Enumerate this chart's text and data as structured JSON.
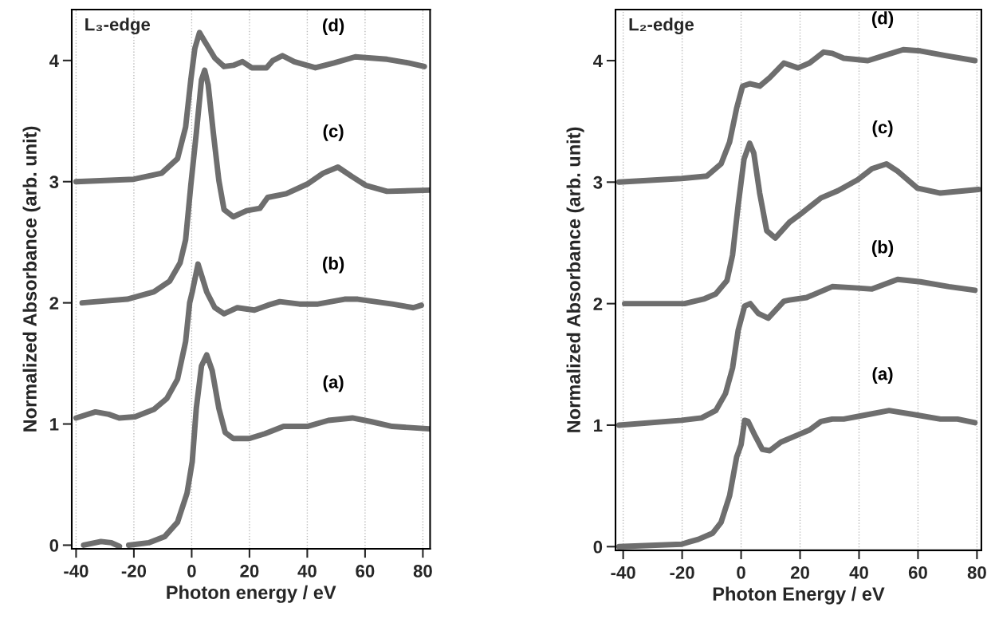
{
  "chart_data": [
    {
      "type": "line",
      "xlabel": "Photon energy / eV",
      "ylabel": "Normalized Absorbance (arb. unit)",
      "xlim": [
        -41.5,
        82.5
      ],
      "ylim": [
        -0.03,
        4.42
      ],
      "xticks": [
        -40,
        -20,
        0,
        20,
        40,
        60,
        80
      ],
      "yticks": [
        0,
        1,
        2,
        3,
        4
      ],
      "grid": "x",
      "annotations": [
        "L₃-edge"
      ],
      "series": [
        {
          "name": "(a)",
          "color": "#6e6e6e",
          "x": [
            -37.4,
            -31.4,
            -27.8,
            -25,
            -23.5,
            -21.8,
            -14.9,
            -9.4,
            -4.9,
            -1.6,
            0.2,
            1.6,
            3.4,
            5.2,
            7.1,
            9.4,
            11.6,
            14.4,
            19.9,
            25.3,
            31.8,
            40,
            47.3,
            55.6,
            62,
            69.4,
            82.3
          ],
          "values": [
            0.0,
            0.03,
            0.02,
            -0.01,
            null,
            0.0,
            0.02,
            0.07,
            0.19,
            0.43,
            0.69,
            1.13,
            1.48,
            1.57,
            1.44,
            1.13,
            0.93,
            0.88,
            0.88,
            0.92,
            0.98,
            0.98,
            1.03,
            1.05,
            1.02,
            0.98,
            0.96
          ]
        },
        {
          "name": "(b)",
          "color": "#6e6e6e",
          "x": [
            -40,
            -33.3,
            -28.7,
            -25.1,
            -19.6,
            -13.1,
            -8.6,
            -4.9,
            -2.1,
            -0.7,
            0.2,
            2.2,
            5.2,
            8,
            11.2,
            15.8,
            21.7,
            26.3,
            30.5,
            37.3,
            43.7,
            52.9,
            57.5,
            69.4,
            76.7,
            79.5
          ],
          "values": [
            1.05,
            1.1,
            1.08,
            1.05,
            1.06,
            1.12,
            1.21,
            1.37,
            1.68,
            2.0,
            2.09,
            2.32,
            2.09,
            1.96,
            1.91,
            1.96,
            1.94,
            1.98,
            2.01,
            1.99,
            1.99,
            2.03,
            2.03,
            1.99,
            1.96,
            1.98
          ]
        },
        {
          "name": "(c)",
          "color": "#6e6e6e",
          "x": [
            -37.9,
            -22.3,
            -13.1,
            -7.6,
            -4,
            -2.1,
            -0.3,
            1.6,
            3.4,
            4.5,
            5.7,
            7.5,
            9.4,
            11.2,
            14.4,
            19,
            23.6,
            26.3,
            32.7,
            40,
            45.5,
            50.6,
            55.6,
            60.2,
            67.6,
            82.3
          ],
          "values": [
            2.0,
            2.03,
            2.09,
            2.18,
            2.33,
            2.52,
            2.97,
            3.4,
            3.84,
            3.92,
            3.8,
            3.4,
            3.01,
            2.77,
            2.71,
            2.76,
            2.78,
            2.87,
            2.9,
            2.98,
            3.07,
            3.12,
            3.04,
            2.97,
            2.92,
            2.93
          ]
        },
        {
          "name": "(d)",
          "color": "#6e6e6e",
          "x": [
            -40,
            -20,
            -10.4,
            -4.9,
            -2.1,
            -0.3,
            1.1,
            2.7,
            5.2,
            8,
            11.2,
            14.4,
            17.6,
            20.8,
            25.9,
            28.1,
            31.4,
            35.5,
            42.8,
            49.3,
            56.6,
            67.6,
            75,
            80.5
          ],
          "values": [
            3.0,
            3.02,
            3.07,
            3.19,
            3.45,
            3.84,
            4.1,
            4.23,
            4.13,
            4.02,
            3.95,
            3.96,
            3.99,
            3.94,
            3.94,
            4.0,
            4.04,
            3.99,
            3.94,
            3.98,
            4.03,
            4.01,
            3.98,
            3.95
          ]
        }
      ]
    },
    {
      "type": "line",
      "xlabel": "Photon Energy / eV",
      "ylabel": "Normalized Absorbance (arb. unit)",
      "xlim": [
        -42.6,
        81.5
      ],
      "ylim": [
        -0.03,
        4.42
      ],
      "xticks": [
        -40,
        -20,
        0,
        20,
        40,
        60,
        80
      ],
      "yticks": [
        0,
        1,
        2,
        3,
        4
      ],
      "grid": "x",
      "annotations": [
        "L₂-edge"
      ],
      "series": [
        {
          "name": "(a)",
          "color": "#6e6e6e",
          "x": [
            -41.4,
            -20.2,
            -17.4,
            -14.5,
            -9.7,
            -6.8,
            -3.9,
            -1.5,
            0,
            1.2,
            2.4,
            4.8,
            7.2,
            9.7,
            13.5,
            19.3,
            23.2,
            27.1,
            30.9,
            34.8,
            41.5,
            50.2,
            57.9,
            67.6,
            73.4,
            79.3
          ],
          "values": [
            0.0,
            0.02,
            0.04,
            0.06,
            0.11,
            0.2,
            0.42,
            0.74,
            0.84,
            1.04,
            1.03,
            0.91,
            0.8,
            0.79,
            0.86,
            0.92,
            0.96,
            1.03,
            1.05,
            1.05,
            1.08,
            1.12,
            1.09,
            1.05,
            1.05,
            1.02
          ]
        },
        {
          "name": "(b)",
          "color": "#6e6e6e",
          "x": [
            -41.4,
            -20.2,
            -13.4,
            -8.6,
            -5.3,
            -2.9,
            -1,
            1.2,
            3.1,
            5.8,
            9.2,
            14.5,
            16.4,
            22.2,
            30.9,
            38.6,
            44.4,
            53.1,
            60.8,
            70.5,
            79.3
          ],
          "values": [
            1.0,
            1.04,
            1.06,
            1.12,
            1.26,
            1.47,
            1.78,
            1.98,
            2.0,
            1.92,
            1.88,
            2.02,
            2.03,
            2.05,
            2.14,
            2.13,
            2.12,
            2.2,
            2.18,
            2.14,
            2.11
          ]
        },
        {
          "name": "(c)",
          "color": "#6e6e6e",
          "x": [
            -39.5,
            -19.2,
            -12.4,
            -8.6,
            -4.8,
            -2.9,
            -1,
            1,
            2.9,
            4.3,
            6.3,
            8.7,
            11.6,
            16.4,
            20.3,
            27.1,
            32.9,
            39.6,
            44.4,
            49.3,
            53.1,
            59.8,
            67.6,
            80.6
          ],
          "values": [
            2.0,
            2.0,
            2.04,
            2.08,
            2.19,
            2.4,
            2.81,
            3.19,
            3.32,
            3.24,
            2.91,
            2.6,
            2.54,
            2.67,
            2.74,
            2.87,
            2.93,
            3.02,
            3.11,
            3.15,
            3.09,
            2.95,
            2.91,
            2.94
          ]
        },
        {
          "name": "(d)",
          "color": "#6e6e6e",
          "x": [
            -41.4,
            -20.2,
            -11.6,
            -6.8,
            -3.9,
            -1.5,
            0.5,
            2.9,
            6.3,
            9.7,
            14.5,
            19.3,
            23.2,
            28,
            30.9,
            34.8,
            43,
            48.3,
            55,
            60.8,
            69.6,
            79.3
          ],
          "values": [
            3.0,
            3.03,
            3.05,
            3.15,
            3.33,
            3.61,
            3.79,
            3.81,
            3.79,
            3.86,
            3.98,
            3.94,
            3.98,
            4.07,
            4.06,
            4.02,
            4.0,
            4.04,
            4.09,
            4.08,
            4.04,
            4.0
          ]
        }
      ]
    }
  ]
}
